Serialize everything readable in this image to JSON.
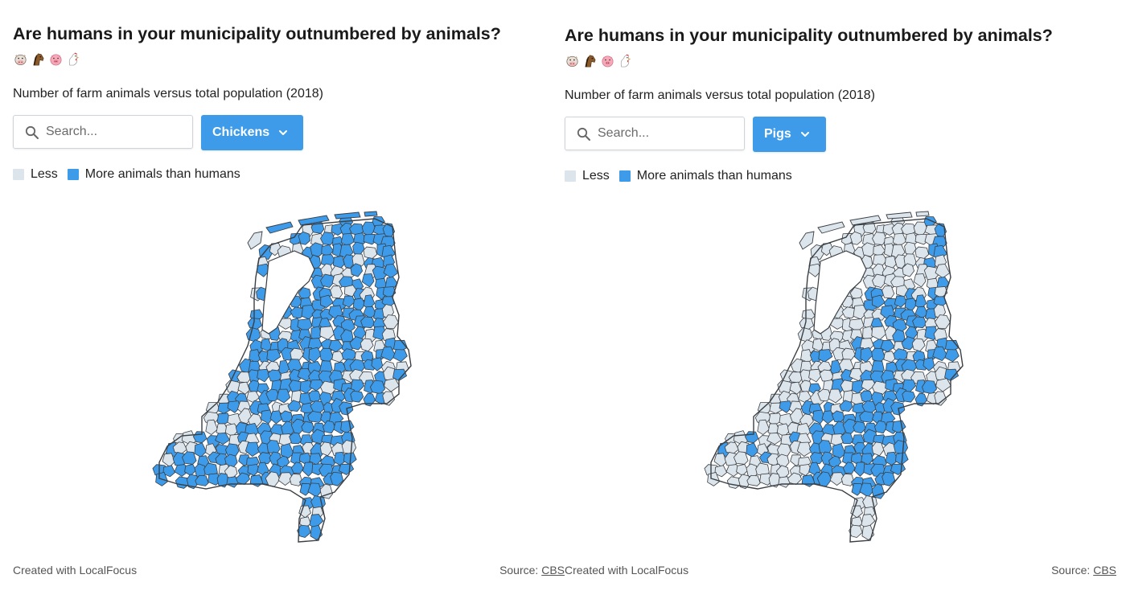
{
  "colors": {
    "less": "#dde5ec",
    "more": "#3d9be9",
    "border": "#3a3f44",
    "button_bg": "#3d9be9"
  },
  "panels": [
    {
      "title": "Are humans in your municipality outnumbered by animals?",
      "emojis": [
        "cow-face-icon",
        "horse-icon",
        "pig-face-icon",
        "chicken-icon"
      ],
      "subtitle": "Number of farm animals versus total population (2018)",
      "search": {
        "placeholder": "Search..."
      },
      "dropdown": {
        "selected": "Chickens"
      },
      "legend": {
        "less": "Less",
        "more": "More animals than humans"
      },
      "footer": {
        "created": "Created with LocalFocus",
        "source_label": "Source:",
        "source_link": "CBS"
      },
      "map_highlight": "chickens"
    },
    {
      "title": "Are humans in your municipality outnumbered by animals?",
      "emojis": [
        "cow-face-icon",
        "horse-icon",
        "pig-face-icon",
        "chicken-icon"
      ],
      "subtitle": "Number of farm animals versus total population (2018)",
      "search": {
        "placeholder": "Search..."
      },
      "dropdown": {
        "selected": "Pigs"
      },
      "legend": {
        "less": "Less",
        "more": "More animals than humans"
      },
      "footer": {
        "created": "Created with LocalFocus",
        "source_label": "Source:",
        "source_link": "CBS"
      },
      "map_highlight": "pigs"
    }
  ]
}
